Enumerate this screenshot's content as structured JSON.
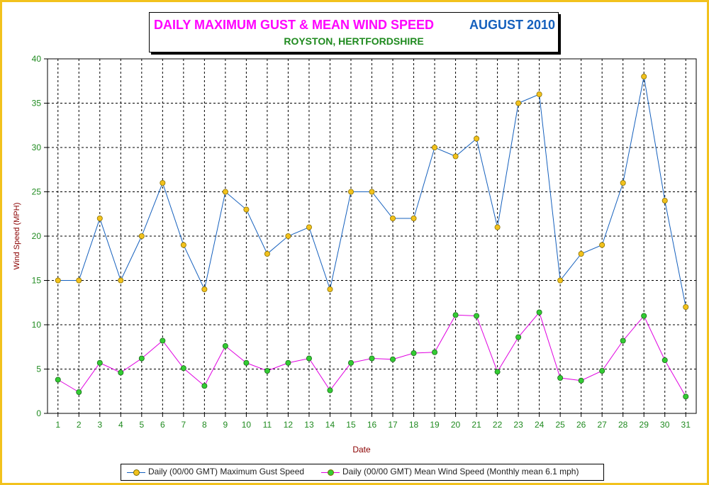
{
  "title": {
    "main": "DAILY MAXIMUM GUST & MEAN WIND SPEED",
    "month": "AUGUST 2010",
    "location": "ROYSTON, HERTFORDSHIRE"
  },
  "colors": {
    "frame": "#f2c21d",
    "title_main": "#ff00ff",
    "title_month": "#1560bd",
    "title_sub": "#1f8a1f",
    "axis_text": "#1f8a1f",
    "axis_label": "#8b0000",
    "gust_line": "#1560bd",
    "gust_marker": "#f2c21d",
    "mean_line": "#e000e0",
    "mean_marker": "#33cc33"
  },
  "chart_data": {
    "type": "line",
    "xlabel": "Date",
    "ylabel": "Wind Speed (MPH)",
    "ylim": [
      0,
      40
    ],
    "yticks": [
      0,
      5,
      10,
      15,
      20,
      25,
      30,
      35,
      40
    ],
    "grid": true,
    "legend_position": "bottom",
    "categories": [
      "1",
      "2",
      "3",
      "4",
      "5",
      "6",
      "7",
      "8",
      "9",
      "10",
      "11",
      "12",
      "13",
      "14",
      "15",
      "16",
      "17",
      "18",
      "19",
      "20",
      "21",
      "22",
      "23",
      "24",
      "25",
      "26",
      "27",
      "28",
      "29",
      "30",
      "31"
    ],
    "series": [
      {
        "name": "Daily (00/00 GMT) Maximum Gust Speed",
        "values": [
          15,
          15,
          22,
          15,
          20,
          26,
          19,
          14,
          25,
          23,
          18,
          20,
          21,
          14,
          25,
          25,
          22,
          22,
          30,
          29,
          31,
          21,
          35,
          36,
          15,
          18,
          19,
          26,
          38,
          24,
          12
        ]
      },
      {
        "name": "Daily (00/00 GMT) Mean Wind Speed (Monthly mean 6.1 mph)",
        "values": [
          3.8,
          2.4,
          5.7,
          4.6,
          6.2,
          8.2,
          5.1,
          3.1,
          7.6,
          5.7,
          4.8,
          5.7,
          6.2,
          2.6,
          5.7,
          6.2,
          6.1,
          6.8,
          6.9,
          11.1,
          11.0,
          4.7,
          8.6,
          11.4,
          4.0,
          3.7,
          4.8,
          8.2,
          11.0,
          6.0,
          1.9
        ]
      }
    ]
  }
}
